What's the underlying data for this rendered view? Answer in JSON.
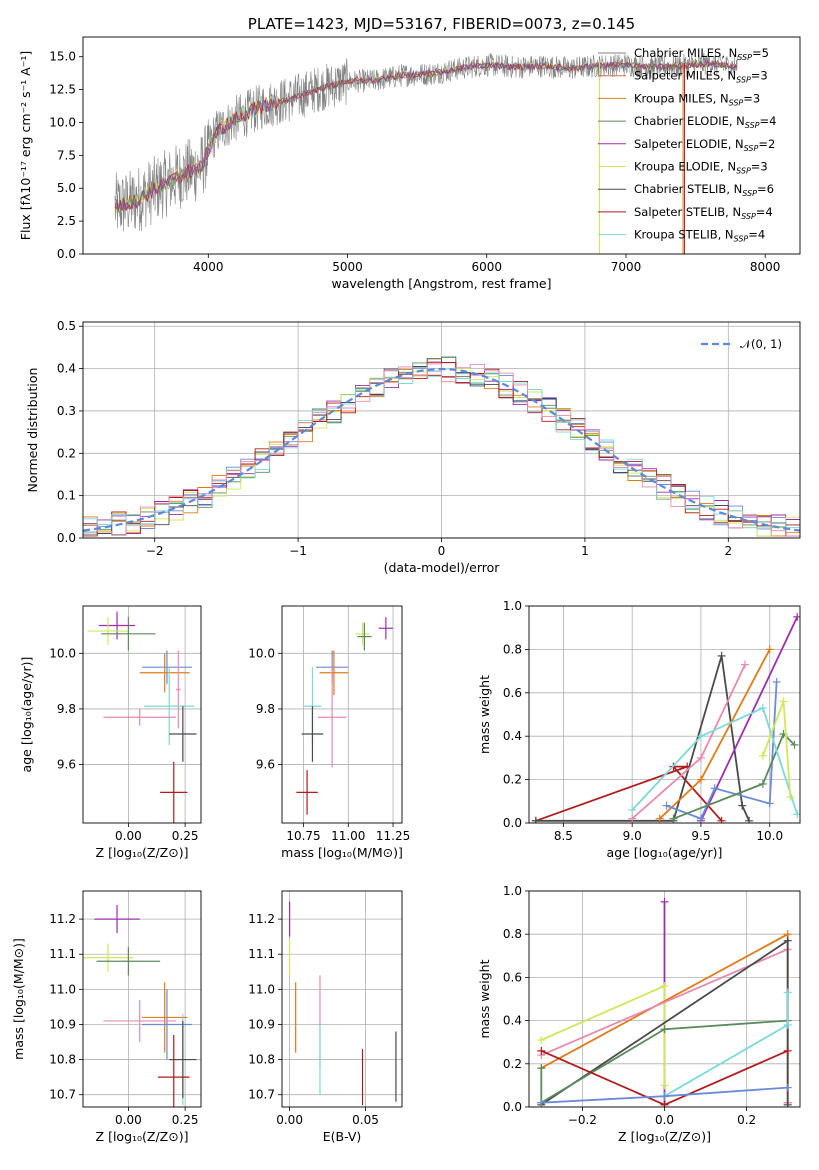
{
  "palette": {
    "Chabrier MILES": "#6a8bd6",
    "Salpeter MILES": "#cc4fc3",
    "Kroupa MILES": "#e07b1a",
    "Chabrier ELODIE": "#5b8a5b",
    "Salpeter ELODIE": "#9b2fae",
    "Kroupa ELODIE": "#d2e65a",
    "Chabrier STELIB": "#4a4a4a",
    "Salpeter STELIB": "#b01c1c",
    "Kroupa STELIB": "#7fd7da",
    "pink": "#e58ab0",
    "normal": "#5b8bd6"
  },
  "chart_data": [
    {
      "id": "spectrum",
      "type": "line",
      "title": "PLATE=1423, MJD=53167, FIBERID=0073, z=0.145",
      "xlabel": "wavelength [Angstrom, rest frame]",
      "ylabel": "Flux [fλ10⁻¹⁷ erg cm⁻² s⁻¹ A⁻¹]",
      "xlim": [
        3100,
        8250
      ],
      "ylim": [
        0,
        16.5
      ],
      "xticks": [
        4000,
        5000,
        6000,
        7000,
        8000
      ],
      "yticks": [
        0.0,
        2.5,
        5.0,
        7.5,
        10.0,
        12.5,
        15.0
      ],
      "grid": false,
      "legend_position": "top-right",
      "continuum": {
        "x": [
          3330,
          3450,
          3600,
          3800,
          3950,
          4050,
          4200,
          4400,
          4600,
          4800,
          5000,
          5200,
          5400,
          5600,
          5800,
          6000,
          6200,
          6400,
          6600,
          6800,
          7000,
          7200,
          7400,
          7600,
          7800
        ],
        "y": [
          3.6,
          3.9,
          4.8,
          6.0,
          6.6,
          9.2,
          10.3,
          11.3,
          11.8,
          12.6,
          13.1,
          13.2,
          13.6,
          13.7,
          14.1,
          14.4,
          14.2,
          14.3,
          14.1,
          14.3,
          14.4,
          14.2,
          14.3,
          14.5,
          14.2
        ]
      },
      "legend": [
        {
          "label": "Chabrier MILES, N",
          "sub": "SSP",
          "tail": "=5",
          "color": "#808080"
        },
        {
          "label": "Salpeter MILES, N",
          "sub": "SSP",
          "tail": "=3",
          "color": "#d06b5f"
        },
        {
          "label": "Kroupa MILES, N",
          "sub": "SSP",
          "tail": "=3",
          "color": "#e07b1a"
        },
        {
          "label": "Chabrier ELODIE, N",
          "sub": "SSP",
          "tail": "=4",
          "color": "#5b8a5b"
        },
        {
          "label": "Salpeter ELODIE, N",
          "sub": "SSP",
          "tail": "=2",
          "color": "#9b2fae"
        },
        {
          "label": "Kroupa ELODIE, N",
          "sub": "SSP",
          "tail": "=3",
          "color": "#d2e65a"
        },
        {
          "label": "Chabrier STELIB, N",
          "sub": "SSP",
          "tail": "=6",
          "color": "#4a4a4a"
        },
        {
          "label": "Salpeter STELIB, N",
          "sub": "SSP",
          "tail": "=4",
          "color": "#b01c1c"
        },
        {
          "label": "Kroupa STELIB, N",
          "sub": "SSP",
          "tail": "=4",
          "color": "#7fd7da"
        }
      ]
    },
    {
      "id": "residuals",
      "type": "histogram",
      "xlabel": "(data-model)/error",
      "ylabel": "Normed distribution",
      "xlim": [
        -2.5,
        2.5
      ],
      "ylim": [
        0,
        0.51
      ],
      "xticks": [
        -2,
        -1,
        0,
        1,
        2
      ],
      "xtick_labels": [
        "−2",
        "−1",
        "0",
        "1",
        "2"
      ],
      "yticks": [
        0.0,
        0.1,
        0.2,
        0.3,
        0.4,
        0.5
      ],
      "grid": true,
      "legend_position": "top-right",
      "legend": [
        {
          "label": "𝒩(0, 1)",
          "color": "#5b8bd6"
        }
      ]
    },
    {
      "id": "age-vs-Z",
      "type": "errorbar",
      "xlabel": "Z [log₁₀(Z/Z⊙)]",
      "ylabel": "age  [log₁₀(age/yr)]",
      "xlim": [
        -0.2,
        0.32
      ],
      "ylim": [
        9.39,
        10.17
      ],
      "xticks": [
        0.0,
        0.25
      ],
      "xtick_labels": [
        "0.00",
        "0.25"
      ],
      "yticks": [
        9.6,
        9.8,
        10.0
      ],
      "grid": true,
      "points": [
        {
          "color": "#9b2fae",
          "x": -0.05,
          "xerr": 0.08,
          "y": 10.1,
          "yerr": 0.05
        },
        {
          "color": "#d2e65a",
          "x": -0.09,
          "xerr": 0.09,
          "y": 10.08,
          "yerr": 0.05
        },
        {
          "color": "#5b8a5b",
          "x": 0.0,
          "xerr": 0.12,
          "y": 10.07,
          "yerr": 0.06
        },
        {
          "color": "#6a8bd6",
          "x": 0.17,
          "xerr": 0.11,
          "y": 9.95,
          "yerr": 0.06
        },
        {
          "color": "#e07b1a",
          "x": 0.16,
          "xerr": 0.11,
          "y": 9.93,
          "yerr": 0.07
        },
        {
          "color": "#e58ab0",
          "x": 0.22,
          "xerr": 0.01,
          "y": 9.87,
          "yerr": 0.14
        },
        {
          "color": "#7fd7da",
          "x": 0.18,
          "xerr": 0.11,
          "y": 9.81,
          "yerr": 0.14
        },
        {
          "color": "#e58ab0",
          "x": 0.05,
          "xerr": 0.16,
          "y": 9.77,
          "yerr": 0.03
        },
        {
          "color": "#4a4a4a",
          "x": 0.24,
          "xerr": 0.06,
          "y": 9.71,
          "yerr": 0.1
        },
        {
          "color": "#b01c1c",
          "x": 0.2,
          "xerr": 0.06,
          "y": 9.5,
          "yerr": 0.11
        }
      ]
    },
    {
      "id": "age-vs-mass",
      "type": "errorbar",
      "xlabel": "mass [log₁₀(M/M⊙)]",
      "ylabel": "",
      "xlim": [
        10.63,
        11.3
      ],
      "ylim": [
        9.39,
        10.17
      ],
      "xticks": [
        10.75,
        11.0,
        11.25
      ],
      "xtick_labels": [
        "10.75",
        "11.00",
        "11.25"
      ],
      "yticks": [
        9.6,
        9.8,
        10.0
      ],
      "grid": true,
      "points": [
        {
          "color": "#9b2fae",
          "x": 11.21,
          "xerr": 0.04,
          "y": 10.09,
          "yerr": 0.04
        },
        {
          "color": "#d2e65a",
          "x": 11.08,
          "xerr": 0.04,
          "y": 10.07,
          "yerr": 0.04
        },
        {
          "color": "#5b8a5b",
          "x": 11.09,
          "xerr": 0.04,
          "y": 10.06,
          "yerr": 0.05
        },
        {
          "color": "#6a8bd6",
          "x": 10.91,
          "xerr": 0.09,
          "y": 9.95,
          "yerr": 0.06
        },
        {
          "color": "#e07b1a",
          "x": 10.92,
          "xerr": 0.08,
          "y": 9.93,
          "yerr": 0.08
        },
        {
          "color": "#e58ab0",
          "x": 10.91,
          "xerr": 0.08,
          "y": 9.77,
          "yerr": 0.18
        },
        {
          "color": "#7fd7da",
          "x": 10.8,
          "xerr": 0.05,
          "y": 9.81,
          "yerr": 0.14
        },
        {
          "color": "#4a4a4a",
          "x": 10.8,
          "xerr": 0.06,
          "y": 9.71,
          "yerr": 0.1
        },
        {
          "color": "#b01c1c",
          "x": 10.77,
          "xerr": 0.06,
          "y": 9.5,
          "yerr": 0.08
        }
      ]
    },
    {
      "id": "mass-weight-vs-age",
      "type": "line",
      "xlabel": "age  [log₁₀(age/yr)]",
      "ylabel": "mass weight",
      "xlim": [
        8.25,
        10.22
      ],
      "ylim": [
        0.0,
        1.0
      ],
      "xticks": [
        8.5,
        9.0,
        9.5,
        10.0
      ],
      "xtick_labels": [
        "8.5",
        "9.0",
        "9.5",
        "10.0"
      ],
      "yticks": [
        0.0,
        0.2,
        0.4,
        0.6,
        0.8,
        1.0
      ],
      "ytick_labels": [
        "0.0",
        "0.2",
        "0.4",
        "0.6",
        "0.8",
        "1.0"
      ],
      "grid": true,
      "series": [
        {
          "color": "#b01c1c",
          "x": [
            8.3,
            9.4,
            9.3,
            9.65
          ],
          "y": [
            0.01,
            0.26,
            0.26,
            0.01
          ]
        },
        {
          "color": "#4a4a4a",
          "x": [
            8.3,
            9.3,
            9.65,
            9.8,
            9.85
          ],
          "y": [
            0.01,
            0.01,
            0.77,
            0.08,
            0.01
          ]
        },
        {
          "color": "#9b2fae",
          "x": [
            9.5,
            10.2
          ],
          "y": [
            0.01,
            0.95
          ]
        },
        {
          "color": "#e07b1a",
          "x": [
            9.2,
            9.5,
            10.0
          ],
          "y": [
            0.02,
            0.2,
            0.8
          ]
        },
        {
          "color": "#e58ab0",
          "x": [
            9.0,
            9.5,
            9.82
          ],
          "y": [
            0.02,
            0.3,
            0.73
          ]
        },
        {
          "color": "#6a8bd6",
          "x": [
            9.25,
            9.5,
            9.6,
            10.0,
            10.05
          ],
          "y": [
            0.08,
            0.02,
            0.16,
            0.09,
            0.65
          ]
        },
        {
          "color": "#5b8a5b",
          "x": [
            9.3,
            9.95,
            10.1,
            10.18
          ],
          "y": [
            0.02,
            0.18,
            0.41,
            0.36
          ]
        },
        {
          "color": "#7fd7da",
          "x": [
            9.0,
            9.5,
            9.95,
            10.2
          ],
          "y": [
            0.06,
            0.4,
            0.53,
            0.04
          ]
        },
        {
          "color": "#d2e65a",
          "x": [
            9.95,
            10.1,
            10.15
          ],
          "y": [
            0.31,
            0.56,
            0.12
          ]
        }
      ]
    },
    {
      "id": "mass-vs-Z",
      "type": "errorbar",
      "xlabel": "Z [log₁₀(Z/Z⊙)]",
      "ylabel": "mass [log₁₀(M/M⊙)]",
      "xlim": [
        -0.2,
        0.32
      ],
      "ylim": [
        10.665,
        11.28
      ],
      "xticks": [
        0.0,
        0.25
      ],
      "xtick_labels": [
        "0.00",
        "0.25"
      ],
      "yticks": [
        10.7,
        10.8,
        10.9,
        11.0,
        11.1,
        11.2
      ],
      "ytick_labels": [
        "10.7",
        "10.8",
        "10.9",
        "11.0",
        "11.1",
        "11.2"
      ],
      "grid": true,
      "points": [
        {
          "color": "#9b2fae",
          "x": -0.05,
          "xerr": 0.1,
          "y": 11.2,
          "yerr": 0.04
        },
        {
          "color": "#d2e65a",
          "x": -0.09,
          "xerr": 0.11,
          "y": 11.09,
          "yerr": 0.04
        },
        {
          "color": "#5b8a5b",
          "x": 0.0,
          "xerr": 0.14,
          "y": 11.08,
          "yerr": 0.04
        },
        {
          "color": "#e07b1a",
          "x": 0.16,
          "xerr": 0.1,
          "y": 10.92,
          "yerr": 0.1
        },
        {
          "color": "#6a8bd6",
          "x": 0.17,
          "xerr": 0.11,
          "y": 10.9,
          "yerr": 0.1
        },
        {
          "color": "#e58ab0",
          "x": 0.05,
          "xerr": 0.16,
          "y": 10.91,
          "yerr": 0.06
        },
        {
          "color": "#7fd7da",
          "x": 0.24,
          "xerr": 0.06,
          "y": 10.8,
          "yerr": 0.13
        },
        {
          "color": "#4a4a4a",
          "x": 0.24,
          "xerr": 0.06,
          "y": 10.8,
          "yerr": 0.11
        },
        {
          "color": "#b01c1c",
          "x": 0.2,
          "xerr": 0.07,
          "y": 10.75,
          "yerr": 0.12
        }
      ]
    },
    {
      "id": "mass-vs-EBV",
      "type": "errorbar",
      "xlabel": "E(B-V)",
      "ylabel": "",
      "xlim": [
        -0.005,
        0.074
      ],
      "ylim": [
        10.665,
        11.28
      ],
      "xticks": [
        0.0,
        0.05
      ],
      "xtick_labels": [
        "0.00",
        "0.05"
      ],
      "yticks": [
        10.7,
        10.8,
        10.9,
        11.0,
        11.1,
        11.2
      ],
      "ytick_labels": [
        "10.7",
        "10.8",
        "10.9",
        "11.0",
        "11.1",
        "11.2"
      ],
      "grid": true,
      "points": [
        {
          "color": "#9b2fae",
          "x": 0.0,
          "xerr": 0.0,
          "y": 11.2,
          "yerr": 0.05
        },
        {
          "color": "#d2e65a",
          "x": 0.0,
          "xerr": 0.0,
          "y": 11.09,
          "yerr": 0.05
        },
        {
          "color": "#e07b1a",
          "x": 0.004,
          "xerr": 0.0,
          "y": 10.92,
          "yerr": 0.1
        },
        {
          "color": "#e58ab0",
          "x": 0.02,
          "xerr": 0.0,
          "y": 10.91,
          "yerr": 0.13
        },
        {
          "color": "#7fd7da",
          "x": 0.02,
          "xerr": 0.0,
          "y": 10.8,
          "yerr": 0.1
        },
        {
          "color": "#b01c1c",
          "x": 0.048,
          "xerr": 0.0,
          "y": 10.75,
          "yerr": 0.08
        },
        {
          "color": "#4a4a4a",
          "x": 0.07,
          "xerr": 0.0,
          "y": 10.78,
          "yerr": 0.1
        }
      ]
    },
    {
      "id": "mass-weight-vs-Z",
      "type": "line",
      "xlabel": "Z [log₁₀(Z/Z⊙)]",
      "ylabel": "mass weight",
      "xlim": [
        -0.33,
        0.33
      ],
      "ylim": [
        0.0,
        1.0
      ],
      "xticks": [
        -0.2,
        0.0,
        0.2
      ],
      "xtick_labels": [
        "−0.2",
        "0.0",
        "0.2"
      ],
      "yticks": [
        0.0,
        0.2,
        0.4,
        0.6,
        0.8,
        1.0
      ],
      "ytick_labels": [
        "0.0",
        "0.2",
        "0.4",
        "0.6",
        "0.8",
        "1.0"
      ],
      "grid": true,
      "series": [
        {
          "color": "#9b2fae",
          "x": [
            0.0,
            0.0
          ],
          "y": [
            0.95,
            0.01
          ]
        },
        {
          "color": "#d2e65a",
          "x": [
            -0.3,
            0.0,
            0.0
          ],
          "y": [
            0.31,
            0.56,
            0.1
          ]
        },
        {
          "color": "#e07b1a",
          "x": [
            -0.3,
            0.3,
            0.3
          ],
          "y": [
            0.18,
            0.8,
            0.02
          ]
        },
        {
          "color": "#e58ab0",
          "x": [
            -0.3,
            0.3,
            0.3
          ],
          "y": [
            0.24,
            0.73,
            0.02
          ]
        },
        {
          "color": "#4a4a4a",
          "x": [
            -0.3,
            0.3,
            0.3
          ],
          "y": [
            0.01,
            0.77,
            0.01
          ]
        },
        {
          "color": "#5b8a5b",
          "x": [
            -0.3,
            -0.3,
            0.0,
            0.3
          ],
          "y": [
            0.18,
            0.02,
            0.36,
            0.4
          ]
        },
        {
          "color": "#7fd7da",
          "x": [
            0.0,
            0.3,
            0.3
          ],
          "y": [
            0.05,
            0.38,
            0.53
          ]
        },
        {
          "color": "#b01c1c",
          "x": [
            -0.3,
            0.0,
            0.3
          ],
          "y": [
            0.26,
            0.01,
            0.26
          ]
        },
        {
          "color": "#6a8bd6",
          "x": [
            -0.3,
            0.0,
            0.3
          ],
          "y": [
            0.02,
            0.05,
            0.09
          ]
        }
      ]
    }
  ]
}
